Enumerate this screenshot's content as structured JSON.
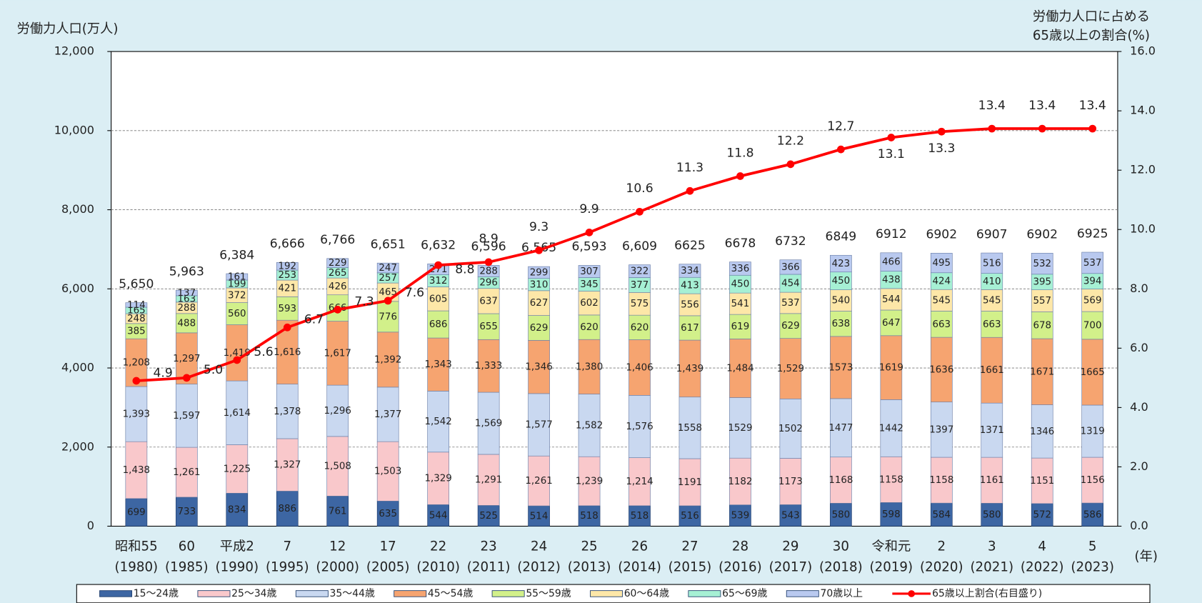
{
  "chart_data": {
    "type": "bar",
    "y_axis_label": "労働力人口(万人)",
    "y2_axis_label": [
      "労働力人口に占める",
      "65歳以上の割合(%)"
    ],
    "x_axis_label": "(年)",
    "categories": [
      "昭和55",
      "60",
      "平成2",
      "7",
      "12",
      "17",
      "22",
      "23",
      "24",
      "25",
      "26",
      "27",
      "28",
      "29",
      "30",
      "令和元",
      "2",
      "3",
      "4",
      "5"
    ],
    "category_years": [
      "(1980)",
      "(1985)",
      "(1990)",
      "(1995)",
      "(2000)",
      "(2005)",
      "(2010)",
      "(2011)",
      "(2012)",
      "(2013)",
      "(2014)",
      "(2015)",
      "(2016)",
      "(2017)",
      "(2018)",
      "(2019)",
      "(2020)",
      "(2021)",
      "(2022)",
      "(2023)"
    ],
    "series": [
      {
        "name": "15～24歳",
        "color": "#3d66a3",
        "values": [
          699,
          733,
          834,
          886,
          761,
          635,
          544,
          525,
          514,
          518,
          518,
          516,
          539,
          543,
          580,
          598,
          584,
          580,
          572,
          586
        ]
      },
      {
        "name": "25～34歳",
        "color": "#f9c8cb",
        "values": [
          1438,
          1261,
          1225,
          1327,
          1508,
          1503,
          1329,
          1291,
          1261,
          1239,
          1214,
          1191,
          1182,
          1173,
          1168,
          1158,
          1158,
          1161,
          1151,
          1156
        ],
        "value_labels": [
          "1,438",
          "1,261",
          "1,225",
          "1,327",
          "1,508",
          "1,503",
          "1,329",
          "1,291",
          "1,261",
          "1,239",
          "1,214",
          "1191",
          "1182",
          "1173",
          "1168",
          "1158",
          "1158",
          "1161",
          "1151",
          "1156"
        ]
      },
      {
        "name": "35～44歳",
        "color": "#c9d8f0",
        "values": [
          1393,
          1597,
          1614,
          1378,
          1296,
          1377,
          1542,
          1569,
          1577,
          1582,
          1576,
          1558,
          1529,
          1502,
          1477,
          1442,
          1397,
          1371,
          1346,
          1319
        ],
        "value_labels": [
          "1,393",
          "1,597",
          "1,614",
          "1,378",
          "1,296",
          "1,377",
          "1,542",
          "1,569",
          "1,577",
          "1,582",
          "1,576",
          "1558",
          "1529",
          "1502",
          "1477",
          "1442",
          "1397",
          "1371",
          "1346",
          "1319"
        ]
      },
      {
        "name": "45～54歳",
        "color": "#f6a470",
        "values": [
          1208,
          1297,
          1419,
          1616,
          1617,
          1392,
          1343,
          1333,
          1346,
          1380,
          1406,
          1439,
          1484,
          1529,
          1573,
          1619,
          1636,
          1661,
          1671,
          1665
        ],
        "value_labels": [
          "1,208",
          "1,297",
          "1,419",
          "1,616",
          "1,617",
          "1,392",
          "1,343",
          "1,333",
          "1,346",
          "1,380",
          "1,406",
          "1,439",
          "1,484",
          "1,529",
          "1573",
          "1619",
          "1636",
          "1661",
          "1671",
          "1665"
        ]
      },
      {
        "name": "55～59歳",
        "color": "#d2f08a",
        "values": [
          385,
          488,
          560,
          593,
          666,
          776,
          686,
          655,
          629,
          620,
          620,
          617,
          619,
          629,
          638,
          647,
          663,
          663,
          678,
          700
        ]
      },
      {
        "name": "60～64歳",
        "color": "#fde7a8",
        "values": [
          248,
          288,
          372,
          421,
          426,
          465,
          605,
          637,
          627,
          602,
          575,
          556,
          541,
          537,
          540,
          544,
          545,
          545,
          557,
          569
        ]
      },
      {
        "name": "65～69歳",
        "color": "#a6f0d4",
        "values": [
          165,
          163,
          199,
          253,
          265,
          257,
          312,
          296,
          310,
          345,
          377,
          413,
          450,
          454,
          450,
          438,
          424,
          410,
          395,
          394
        ]
      },
      {
        "name": "70歳以上",
        "color": "#b9c9ef",
        "values": [
          114,
          137,
          161,
          192,
          229,
          247,
          271,
          288,
          299,
          307,
          322,
          334,
          336,
          366,
          423,
          466,
          495,
          516,
          532,
          537
        ]
      }
    ],
    "totals": [
      5650,
      5963,
      6384,
      6666,
      6766,
      6651,
      6632,
      6596,
      6565,
      6593,
      6609,
      6625,
      6678,
      6732,
      6849,
      6912,
      6902,
      6907,
      6902,
      6925
    ],
    "total_labels": [
      "5,650",
      "5,963",
      "6,384",
      "6,666",
      "6,766",
      "6,651",
      "6,632",
      "6,596",
      "6,565",
      "6,593",
      "6,609",
      "6625",
      "6678",
      "6732",
      "6849",
      "6912",
      "6902",
      "6907",
      "6902",
      "6925"
    ],
    "line": {
      "name": "65歳以上割合(右目盛り)",
      "color": "#ff0000",
      "axis": "y2",
      "type": "line",
      "values": [
        4.9,
        5.0,
        5.6,
        6.7,
        7.3,
        7.6,
        8.8,
        8.9,
        9.3,
        9.9,
        10.6,
        11.3,
        11.8,
        12.2,
        12.7,
        13.1,
        13.3,
        13.4,
        13.4,
        13.4
      ],
      "value_labels": [
        "4.9",
        "5.0",
        "5.6",
        "6.7",
        "7.3",
        "7.6",
        "8.8",
        "8.9",
        "9.3",
        "9.9",
        "10.6",
        "11.3",
        "11.8",
        "12.2",
        "12.7",
        "13.1",
        "13.3",
        "13.4",
        "13.4",
        "13.4"
      ]
    },
    "ylim": [
      0,
      12000
    ],
    "yticks": [
      0,
      {
        "value": 2000,
        "label": "2,000"
      },
      {
        "value": 4000,
        "label": "4,000"
      },
      {
        "value": 6000,
        "label": "6,000"
      },
      {
        "value": 8000,
        "label": "8,000"
      },
      {
        "value": 10000,
        "label": "10,000"
      },
      {
        "value": 12000,
        "label": "12,000"
      }
    ],
    "y2lim": [
      0,
      16
    ],
    "y2ticks": [
      {
        "value": 0,
        "label": "0.0"
      },
      {
        "value": 2,
        "label": "2.0"
      },
      {
        "value": 4,
        "label": "4.0"
      },
      {
        "value": 6,
        "label": "6.0"
      },
      {
        "value": 8,
        "label": "8.0"
      },
      {
        "value": 10,
        "label": "10.0"
      },
      {
        "value": 12,
        "label": "12.0"
      },
      {
        "value": 14,
        "label": "14.0"
      },
      {
        "value": 16,
        "label": "16.0"
      }
    ],
    "grid": true,
    "legend": "bottom"
  }
}
